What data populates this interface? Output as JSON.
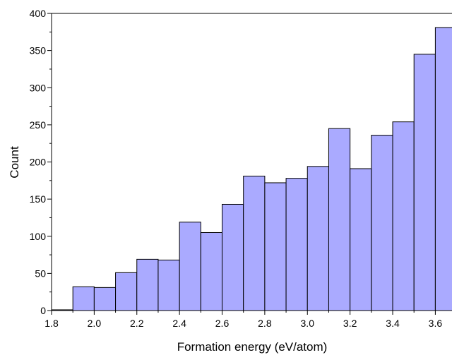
{
  "chart_data": {
    "type": "bar",
    "xlabel": "Formation energy (eV/atom)",
    "ylabel": "Count",
    "xlim": [
      1.8,
      3.7
    ],
    "ylim": [
      0,
      400
    ],
    "x_ticks": [
      "1.8",
      "2.0",
      "2.2",
      "2.4",
      "2.6",
      "2.8",
      "3.0",
      "3.2",
      "3.4",
      "3.6"
    ],
    "y_ticks": [
      "0",
      "50",
      "100",
      "150",
      "200",
      "250",
      "300",
      "350",
      "400"
    ],
    "bin_width": 0.1,
    "bins": [
      {
        "start": 1.8,
        "end": 1.9,
        "count": 1
      },
      {
        "start": 1.9,
        "end": 2.0,
        "count": 32
      },
      {
        "start": 2.0,
        "end": 2.1,
        "count": 31
      },
      {
        "start": 2.1,
        "end": 2.2,
        "count": 51
      },
      {
        "start": 2.2,
        "end": 2.3,
        "count": 69
      },
      {
        "start": 2.3,
        "end": 2.4,
        "count": 68
      },
      {
        "start": 2.4,
        "end": 2.5,
        "count": 119
      },
      {
        "start": 2.5,
        "end": 2.6,
        "count": 105
      },
      {
        "start": 2.6,
        "end": 2.7,
        "count": 143
      },
      {
        "start": 2.7,
        "end": 2.8,
        "count": 181
      },
      {
        "start": 2.8,
        "end": 2.9,
        "count": 172
      },
      {
        "start": 2.9,
        "end": 3.0,
        "count": 178
      },
      {
        "start": 3.0,
        "end": 3.1,
        "count": 194
      },
      {
        "start": 3.1,
        "end": 3.2,
        "count": 245
      },
      {
        "start": 3.2,
        "end": 3.3,
        "count": 191
      },
      {
        "start": 3.3,
        "end": 3.4,
        "count": 236
      },
      {
        "start": 3.4,
        "end": 3.5,
        "count": 254
      },
      {
        "start": 3.5,
        "end": 3.6,
        "count": 345
      },
      {
        "start": 3.6,
        "end": 3.7,
        "count": 381
      }
    ],
    "bar_color": "#aaaaff",
    "bar_edge_color": "#000000",
    "grid": false,
    "legend": "none"
  }
}
